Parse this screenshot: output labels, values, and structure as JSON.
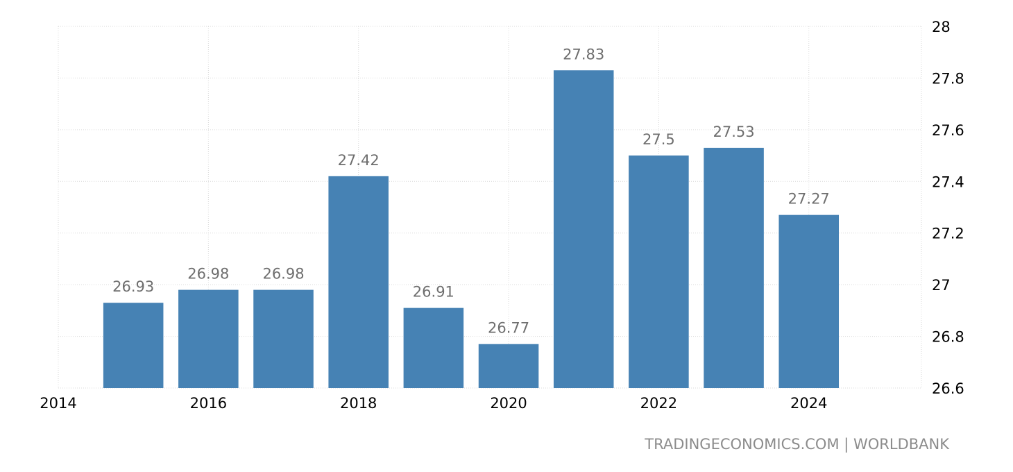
{
  "chart_data": {
    "type": "bar",
    "x": [
      2015,
      2016,
      2017,
      2018,
      2019,
      2020,
      2021,
      2022,
      2023,
      2024
    ],
    "values": [
      26.93,
      26.98,
      26.98,
      27.42,
      26.91,
      26.77,
      27.83,
      27.5,
      27.53,
      27.27
    ],
    "data_labels": [
      "26.93",
      "26.98",
      "26.98",
      "27.42",
      "26.91",
      "26.77",
      "27.83",
      "27.5",
      "27.53",
      "27.27"
    ],
    "xticks": [
      "2014",
      "2016",
      "2018",
      "2020",
      "2022",
      "2024"
    ],
    "yticks": [
      "26.6",
      "26.8",
      "27",
      "27.2",
      "27.4",
      "27.6",
      "27.8",
      "28"
    ],
    "xlim": [
      2014,
      2025.5
    ],
    "ylim": [
      26.6,
      28
    ],
    "y_axis_side": "right",
    "grid": true,
    "bar_color": "#4682b4"
  },
  "source_text": "TRADINGECONOMICS.COM | WORLDBANK"
}
